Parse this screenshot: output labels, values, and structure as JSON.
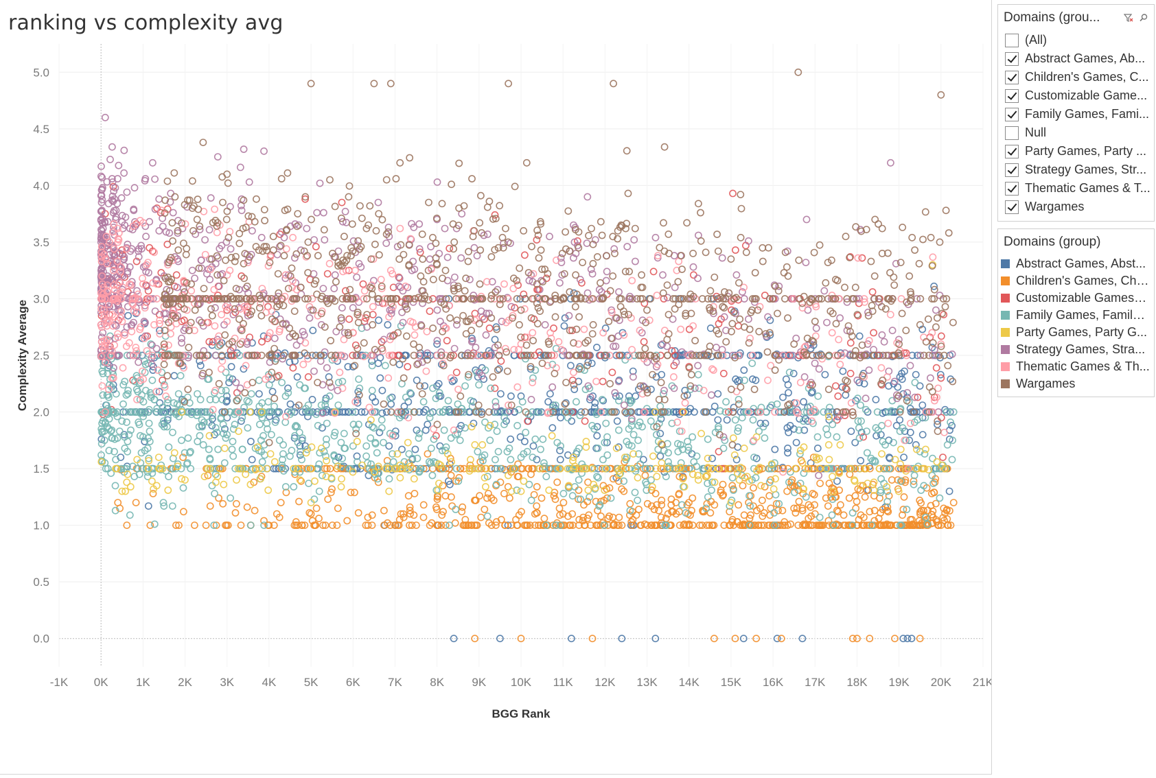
{
  "sheet": {
    "title": "ranking vs complexity avg"
  },
  "filter": {
    "title": "Domains (grou...",
    "items": [
      {
        "label": "(All)",
        "checked": false
      },
      {
        "label": "Abstract Games, Ab...",
        "checked": true
      },
      {
        "label": "Children's Games, C...",
        "checked": true
      },
      {
        "label": "Customizable Game...",
        "checked": true
      },
      {
        "label": "Family Games, Fami...",
        "checked": true
      },
      {
        "label": "Null",
        "checked": false
      },
      {
        "label": "Party Games, Party ...",
        "checked": true
      },
      {
        "label": "Strategy Games, Str...",
        "checked": true
      },
      {
        "label": "Thematic Games & T...",
        "checked": true
      },
      {
        "label": "Wargames",
        "checked": true
      }
    ]
  },
  "legend": {
    "title": "Domains (group)",
    "items": [
      {
        "label": "Abstract Games, Abst...",
        "color": "#4e79a7"
      },
      {
        "label": "Children's Games, Chil...",
        "color": "#f28e2b"
      },
      {
        "label": "Customizable Games, ...",
        "color": "#e15759"
      },
      {
        "label": "Family Games, Family ...",
        "color": "#76b7b2"
      },
      {
        "label": "Party Games, Party G...",
        "color": "#edc948"
      },
      {
        "label": "Strategy Games, Stra...",
        "color": "#b07aa1"
      },
      {
        "label": "Thematic Games & Th...",
        "color": "#ff9da7"
      },
      {
        "label": "Wargames",
        "color": "#9c755f"
      }
    ]
  },
  "chart_data": {
    "type": "scatter",
    "title": "ranking vs complexity avg",
    "xlabel": "BGG Rank",
    "ylabel": "Complexity Average",
    "xlim": [
      -1000,
      21000
    ],
    "ylim": [
      -0.25,
      5.25
    ],
    "x_ticks": [
      "-1K",
      "0K",
      "1K",
      "2K",
      "3K",
      "4K",
      "5K",
      "6K",
      "7K",
      "8K",
      "9K",
      "10K",
      "11K",
      "12K",
      "13K",
      "14K",
      "15K",
      "16K",
      "17K",
      "18K",
      "19K",
      "20K",
      "21K"
    ],
    "x_tick_values": [
      -1000,
      0,
      1000,
      2000,
      3000,
      4000,
      5000,
      6000,
      7000,
      8000,
      9000,
      10000,
      11000,
      12000,
      13000,
      14000,
      15000,
      16000,
      17000,
      18000,
      19000,
      20000,
      21000
    ],
    "y_ticks": [
      "0.0",
      "0.5",
      "1.0",
      "1.5",
      "2.0",
      "2.5",
      "3.0",
      "3.5",
      "4.0",
      "4.5",
      "5.0"
    ],
    "y_tick_values": [
      0,
      0.5,
      1,
      1.5,
      2,
      2.5,
      3,
      3.5,
      4,
      4.5,
      5
    ],
    "grid": true,
    "marker": "open-circle",
    "legend_position": "right",
    "series": [
      {
        "name": "Abstract Games, Abst...",
        "color": "#4e79a7",
        "sample": [
          [
            300,
            2.2
          ],
          [
            1500,
            1.9
          ],
          [
            3000,
            2.1
          ],
          [
            6000,
            2.4
          ],
          [
            9000,
            2.0
          ],
          [
            12000,
            2.0
          ],
          [
            15000,
            1.5
          ],
          [
            18000,
            1.0
          ],
          [
            20200,
            1.3
          ],
          [
            8400,
            0
          ],
          [
            9500,
            0
          ],
          [
            11200,
            0
          ],
          [
            12400,
            0
          ],
          [
            13200,
            0
          ],
          [
            15300,
            0
          ],
          [
            16100,
            0
          ],
          [
            16700,
            0
          ],
          [
            19100,
            0
          ],
          [
            19200,
            0
          ],
          [
            19300,
            0
          ]
        ],
        "approx_count": 1500
      },
      {
        "name": "Children's Games, Chil...",
        "color": "#f28e2b",
        "sample": [
          [
            400,
            1.2
          ],
          [
            2500,
            1.0
          ],
          [
            5000,
            1.1
          ],
          [
            8000,
            1.0
          ],
          [
            11000,
            1.1
          ],
          [
            14000,
            1.0
          ],
          [
            17000,
            1.1
          ],
          [
            20000,
            1.0
          ],
          [
            20300,
            1.2
          ],
          [
            8900,
            0
          ],
          [
            10000,
            0
          ],
          [
            11700,
            0
          ],
          [
            14600,
            0
          ],
          [
            15100,
            0
          ],
          [
            15600,
            0
          ],
          [
            16200,
            0
          ],
          [
            17900,
            0
          ],
          [
            18000,
            0
          ],
          [
            18300,
            0
          ],
          [
            18900,
            0
          ],
          [
            19500,
            0
          ]
        ],
        "approx_count": 1500
      },
      {
        "name": "Customizable Games, ...",
        "color": "#e15759",
        "sample": [
          [
            300,
            3.3
          ],
          [
            1500,
            3.0
          ],
          [
            3000,
            2.9
          ],
          [
            6000,
            2.7
          ],
          [
            10000,
            2.5
          ],
          [
            14000,
            2.4
          ],
          [
            20000,
            2.3
          ]
        ],
        "approx_count": 350
      },
      {
        "name": "Family Games, Family ...",
        "color": "#76b7b2",
        "sample": [
          [
            300,
            2.0
          ],
          [
            1500,
            2.0
          ],
          [
            3000,
            1.8
          ],
          [
            6000,
            1.7
          ],
          [
            10000,
            1.6
          ],
          [
            14000,
            1.5
          ],
          [
            20000,
            1.5
          ]
        ],
        "approx_count": 2000
      },
      {
        "name": "Party Games, Party G...",
        "color": "#edc948",
        "sample": [
          [
            500,
            1.3
          ],
          [
            2000,
            1.4
          ],
          [
            5000,
            1.2
          ],
          [
            10000,
            1.3
          ],
          [
            15000,
            1.2
          ],
          [
            19800,
            3.3
          ]
        ],
        "approx_count": 400
      },
      {
        "name": "Strategy Games, Stra...",
        "color": "#b07aa1",
        "sample": [
          [
            100,
            4.6
          ],
          [
            300,
            3.6
          ],
          [
            1500,
            3.2
          ],
          [
            3000,
            3.0
          ],
          [
            5000,
            2.9
          ],
          [
            8000,
            3.7
          ],
          [
            16800,
            3.7
          ],
          [
            18800,
            4.2
          ]
        ],
        "approx_count": 1700
      },
      {
        "name": "Thematic Games & Th...",
        "color": "#ff9da7",
        "sample": [
          [
            200,
            3.5
          ],
          [
            1500,
            3.0
          ],
          [
            3000,
            2.8
          ],
          [
            6000,
            2.7
          ],
          [
            10000,
            2.6
          ],
          [
            14000,
            2.5
          ],
          [
            20000,
            2.6
          ]
        ],
        "approx_count": 900
      },
      {
        "name": "Wargames",
        "color": "#9c755f",
        "sample": [
          [
            3000,
            4.1
          ],
          [
            5000,
            4.9
          ],
          [
            6500,
            4.9
          ],
          [
            6900,
            4.9
          ],
          [
            9700,
            4.9
          ],
          [
            12200,
            4.9
          ],
          [
            16600,
            5.0
          ],
          [
            20000,
            4.8
          ],
          [
            8000,
            3.3
          ],
          [
            10000,
            2.9
          ],
          [
            13000,
            2.9
          ],
          [
            15500,
            2.9
          ],
          [
            17000,
            2.8
          ],
          [
            19000,
            2.6
          ]
        ],
        "approx_count": 2000
      }
    ]
  }
}
